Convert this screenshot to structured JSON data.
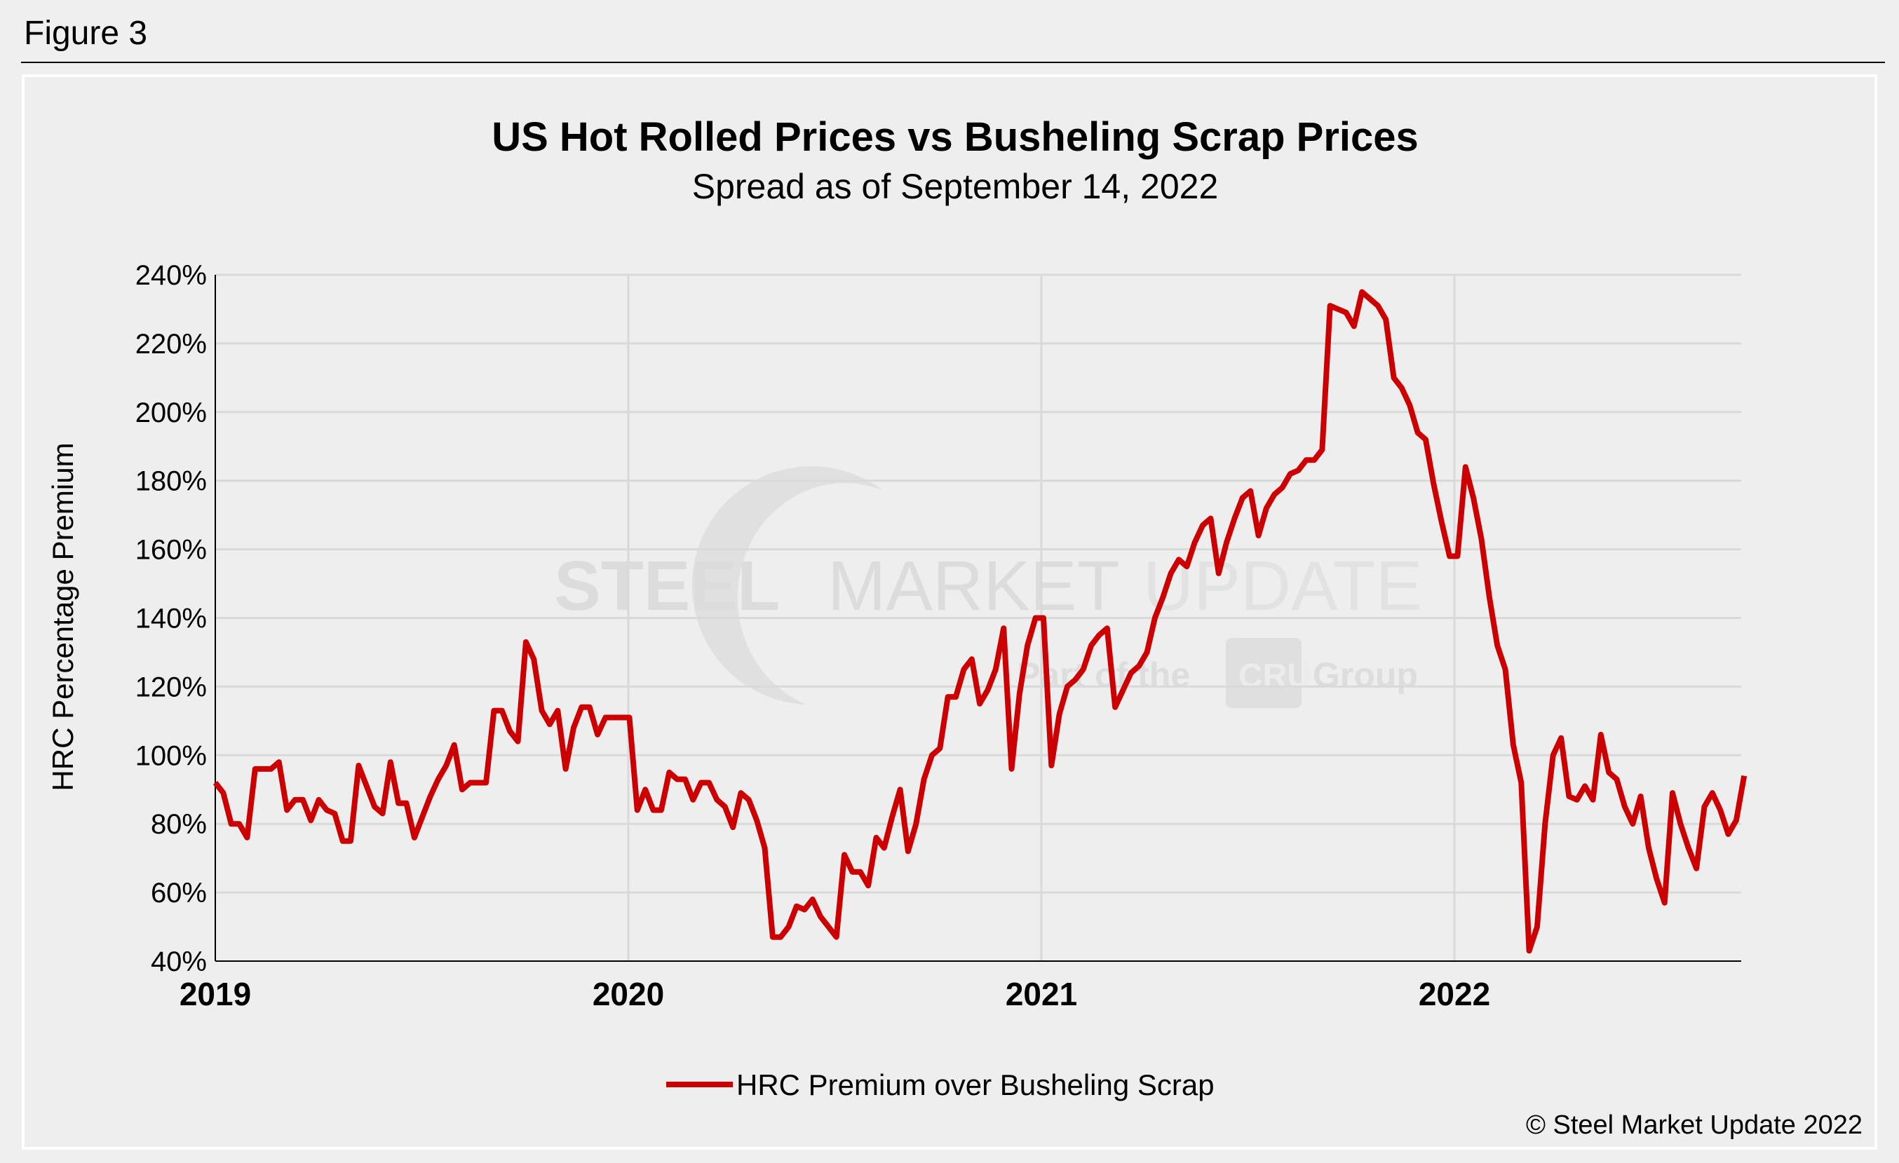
{
  "figure_label": "Figure 3",
  "copyright": "© Steel Market Update 2022",
  "watermark": {
    "line1": "STEEL MARKET",
    "line2": "UPDATE",
    "line3": "Part of the",
    "badge": "CRU",
    "line4": "Group"
  },
  "colors": {
    "series": "#cc0000",
    "grid": "#d9d9d9",
    "background": "#eeeeee"
  },
  "chart_data": {
    "type": "line",
    "title": "US Hot Rolled Prices vs Busheling Scrap Prices",
    "subtitle": "Spread as of September 14, 2022",
    "ylabel": "HRC Percentage Premium",
    "xlabel": "",
    "ylim": [
      40,
      240
    ],
    "yticks": [
      "40%",
      "60%",
      "80%",
      "100%",
      "120%",
      "140%",
      "160%",
      "180%",
      "200%",
      "220%",
      "240%"
    ],
    "xticks": [
      "2019",
      "2020",
      "2021",
      "2022"
    ],
    "x_range": [
      "2019-01-01",
      "2022-09-14"
    ],
    "grid": true,
    "legend_placement": "bottom",
    "series": [
      {
        "name": "HRC Premium over Busheling Scrap",
        "values": [
          92,
          89,
          80,
          80,
          76,
          96,
          96,
          96,
          98,
          84,
          87,
          87,
          81,
          87,
          84,
          83,
          75,
          75,
          97,
          91,
          85,
          83,
          98,
          86,
          86,
          76,
          82,
          88,
          93,
          97,
          103,
          90,
          92,
          92,
          92,
          113,
          113,
          107,
          104,
          133,
          128,
          113,
          109,
          113,
          96,
          108,
          114,
          114,
          106,
          111,
          111,
          111,
          111,
          84,
          90,
          84,
          84,
          95,
          93,
          93,
          87,
          92,
          92,
          87,
          85,
          79,
          89,
          87,
          81,
          73,
          47,
          47,
          50,
          56,
          55,
          58,
          53,
          50,
          47,
          71,
          66,
          66,
          62,
          76,
          73,
          82,
          90,
          72,
          80,
          93,
          100,
          102,
          117,
          117,
          125,
          128,
          115,
          119,
          125,
          137,
          96,
          118,
          132,
          140,
          140,
          97,
          112,
          120,
          122,
          125,
          132,
          135,
          137,
          114,
          119,
          124,
          126,
          130,
          140,
          146,
          153,
          157,
          155,
          162,
          167,
          169,
          153,
          162,
          169,
          175,
          177,
          164,
          172,
          176,
          178,
          182,
          183,
          186,
          186,
          189,
          231,
          230,
          229,
          225,
          235,
          233,
          231,
          227,
          210,
          207,
          202,
          194,
          192,
          179,
          168,
          158,
          158,
          184,
          175,
          163,
          146,
          132,
          125,
          103,
          92,
          43,
          50,
          80,
          100,
          105,
          88,
          87,
          91,
          87,
          106,
          95,
          93,
          85,
          80,
          88,
          73,
          64,
          57,
          89,
          80,
          73,
          67,
          85,
          89,
          84,
          77,
          81,
          94
        ]
      }
    ]
  }
}
